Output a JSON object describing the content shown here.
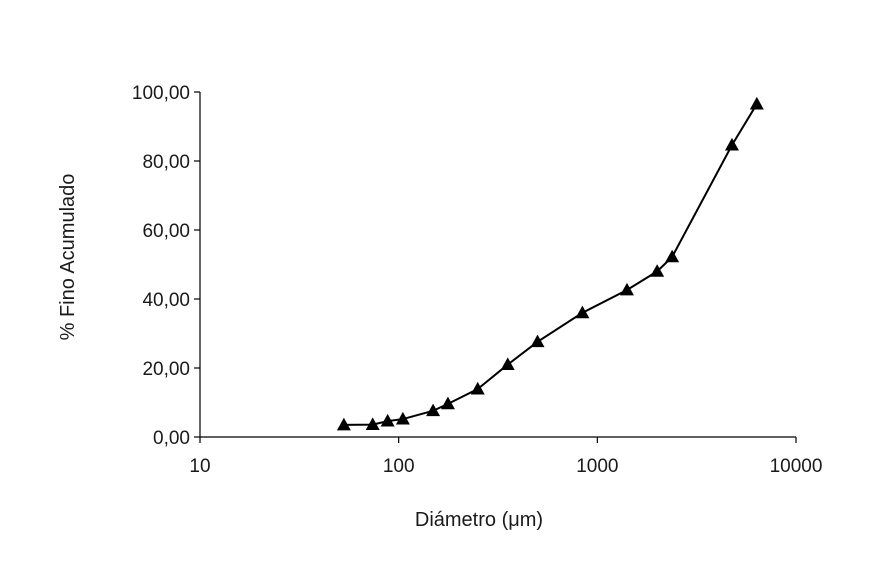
{
  "chart_data": {
    "type": "line",
    "xlabel": "Diámetro  (μm)",
    "ylabel": "% Fino Acumulado",
    "x_scale": "log",
    "xlim": [
      10,
      10000
    ],
    "ylim": [
      0,
      100
    ],
    "x_ticks": [
      10,
      100,
      1000,
      10000
    ],
    "x_tick_labels": [
      "10",
      "100",
      "1000",
      "10000"
    ],
    "y_ticks": [
      0,
      20,
      40,
      60,
      80,
      100
    ],
    "y_tick_labels": [
      "0,00",
      "20,00",
      "40,00",
      "60,00",
      "80,00",
      "100,00"
    ],
    "grid": false,
    "legend": false,
    "series": [
      {
        "marker": "triangle",
        "color": "#000000",
        "points": [
          {
            "x": 53,
            "y": 3.5
          },
          {
            "x": 74,
            "y": 3.6
          },
          {
            "x": 88,
            "y": 4.6
          },
          {
            "x": 105,
            "y": 5.2
          },
          {
            "x": 149,
            "y": 7.6
          },
          {
            "x": 177,
            "y": 9.6
          },
          {
            "x": 250,
            "y": 13.9
          },
          {
            "x": 354,
            "y": 21.0
          },
          {
            "x": 500,
            "y": 27.6
          },
          {
            "x": 841,
            "y": 36.0
          },
          {
            "x": 1410,
            "y": 42.6
          },
          {
            "x": 2000,
            "y": 48.0
          },
          {
            "x": 2380,
            "y": 52.2
          },
          {
            "x": 4760,
            "y": 84.6
          },
          {
            "x": 6350,
            "y": 96.5
          }
        ]
      }
    ]
  }
}
